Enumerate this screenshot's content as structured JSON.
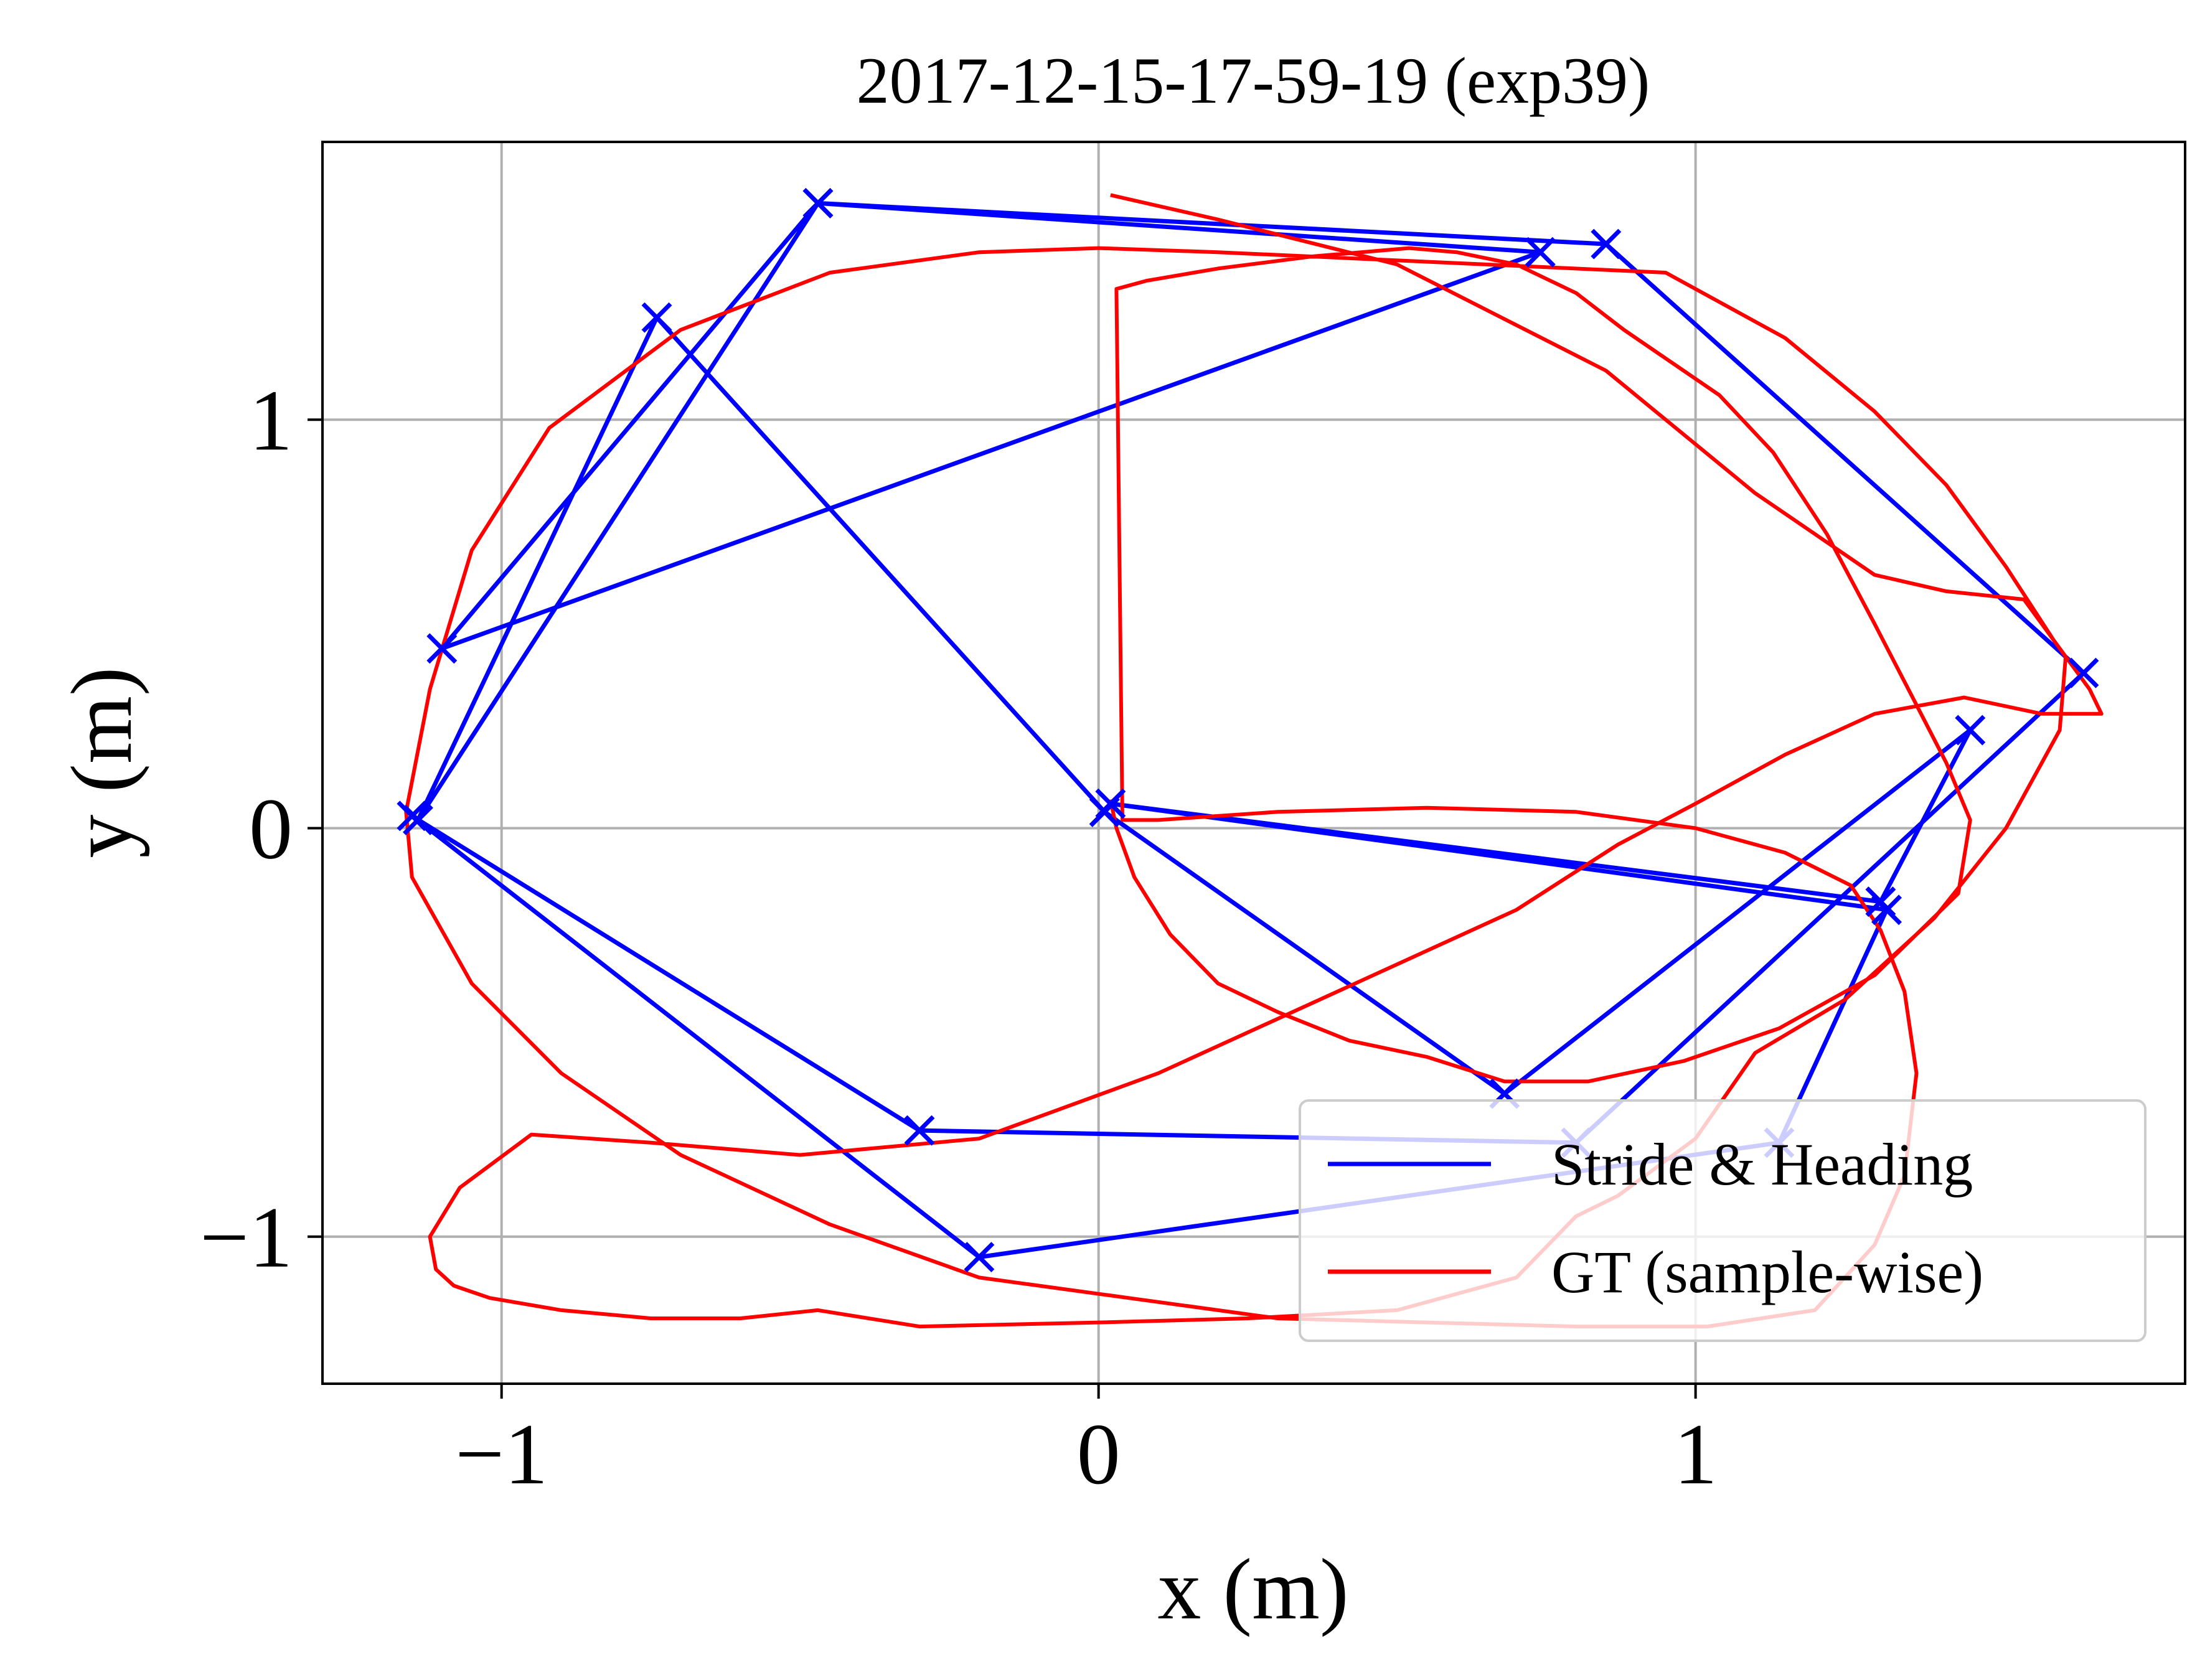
{
  "chart_data": {
    "type": "line",
    "title": "2017-12-15-17-59-19 (exp39)",
    "xlabel": "x (m)",
    "ylabel": "y (m)",
    "xlim": [
      -1.3,
      1.82
    ],
    "ylim": [
      -1.36,
      1.68
    ],
    "xticks": [
      -1,
      0,
      1
    ],
    "yticks": [
      -1,
      0,
      1
    ],
    "xtick_labels": [
      "−1",
      "0",
      "1"
    ],
    "ytick_labels": [
      "−1",
      "0",
      "1"
    ],
    "grid": true,
    "legend": "lower-right",
    "series": [
      {
        "name": "Stride & Heading",
        "color": "#0000ff",
        "marker": "x",
        "x": [
          0.01,
          0.68,
          1.46,
          1.31,
          0.02,
          1.32,
          1.14,
          -0.2,
          -1.15,
          -0.3,
          0.8,
          1.65,
          0.85,
          -0.47,
          -1.1,
          0.74,
          -0.47,
          -1.14,
          -0.74,
          0.01
        ],
        "y": [
          0.04,
          -0.65,
          0.24,
          -0.18,
          0.06,
          -0.2,
          -0.77,
          -1.05,
          0.03,
          -0.74,
          -0.77,
          0.38,
          1.43,
          1.53,
          0.44,
          1.41,
          1.53,
          0.02,
          1.25,
          0.04
        ]
      },
      {
        "name": "GT (sample-wise)",
        "color": "#ff0000",
        "x": [
          0.02,
          0.03,
          0.06,
          0.12,
          0.2,
          0.3,
          0.42,
          0.55,
          0.68,
          0.82,
          0.98,
          1.14,
          1.3,
          1.44,
          1.46,
          1.42,
          1.36,
          1.3,
          1.22,
          1.13,
          1.04,
          0.96,
          0.88,
          0.8,
          0.7,
          0.6,
          0.52,
          0.44,
          0.36,
          0.2,
          0.08,
          0.03,
          0.04,
          0.1,
          0.3,
          0.55,
          0.8,
          1.0,
          1.15,
          1.26,
          1.31,
          1.35,
          1.37,
          1.35,
          1.3,
          1.2,
          1.02,
          0.8,
          0.55,
          0.3,
          0.05,
          -0.2,
          -0.45,
          -0.7,
          -0.9,
          -1.05,
          -1.15,
          -1.16,
          -1.12,
          -1.05,
          -0.92,
          -0.7,
          -0.45,
          -0.2,
          0.0,
          0.2,
          0.35,
          0.65,
          0.95,
          1.15,
          1.3,
          1.42,
          1.52,
          1.6,
          1.66,
          1.68,
          1.58,
          1.45,
          1.3,
          1.15,
          1.0,
          0.87,
          0.7,
          0.4,
          0.1,
          -0.2,
          -0.5,
          -0.75,
          -0.95,
          -1.07,
          -1.12,
          -1.11,
          -1.08,
          -1.02,
          -0.9,
          -0.75,
          -0.6,
          -0.47,
          -0.3,
          0.0,
          0.25,
          0.5,
          0.7,
          0.8,
          0.87,
          1.0,
          1.1,
          1.25,
          1.4,
          1.52,
          1.61,
          1.62,
          1.55,
          1.42,
          1.3,
          1.1,
          0.85,
          0.5,
          0.2,
          0.05,
          0.02
        ],
        "y": [
          0.07,
          0.0,
          -0.12,
          -0.26,
          -0.38,
          -0.45,
          -0.52,
          -0.56,
          -0.62,
          -0.62,
          -0.57,
          -0.49,
          -0.36,
          -0.16,
          0.02,
          0.16,
          0.33,
          0.5,
          0.72,
          0.92,
          1.06,
          1.14,
          1.22,
          1.31,
          1.38,
          1.41,
          1.42,
          1.41,
          1.4,
          1.37,
          1.34,
          1.32,
          0.02,
          0.02,
          0.04,
          0.05,
          0.04,
          0.0,
          -0.06,
          -0.14,
          -0.25,
          -0.4,
          -0.6,
          -0.85,
          -1.02,
          -1.18,
          -1.22,
          -1.22,
          -1.21,
          -1.2,
          -1.15,
          -1.1,
          -0.97,
          -0.8,
          -0.6,
          -0.38,
          -0.12,
          0.04,
          0.34,
          0.68,
          0.98,
          1.22,
          1.36,
          1.41,
          1.42,
          1.41,
          1.4,
          1.38,
          1.36,
          1.2,
          1.02,
          0.84,
          0.64,
          0.46,
          0.34,
          0.28,
          0.28,
          0.32,
          0.28,
          0.18,
          0.06,
          -0.04,
          -0.2,
          -0.4,
          -0.6,
          -0.76,
          -0.8,
          -0.77,
          -0.75,
          -0.88,
          -1.0,
          -1.08,
          -1.12,
          -1.15,
          -1.18,
          -1.2,
          -1.2,
          -1.18,
          -1.22,
          -1.21,
          -1.2,
          -1.18,
          -1.1,
          -0.95,
          -0.9,
          -0.76,
          -0.55,
          -0.42,
          -0.22,
          0.0,
          0.24,
          0.42,
          0.56,
          0.58,
          0.62,
          0.82,
          1.12,
          1.38,
          1.49,
          1.54,
          1.55
        ]
      }
    ]
  }
}
